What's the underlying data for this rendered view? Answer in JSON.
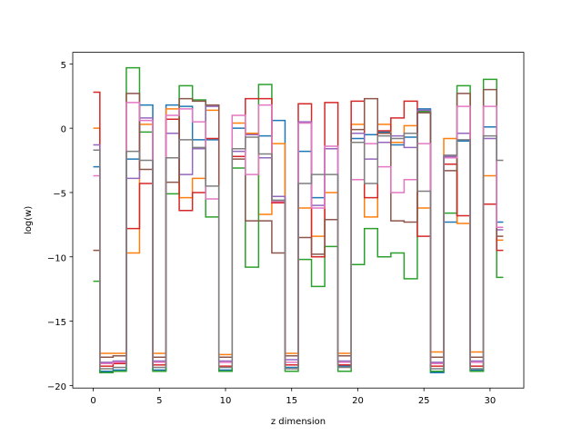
{
  "chart_data": {
    "type": "line",
    "drawstyle": "steps-mid",
    "xlabel": "z dimension",
    "ylabel": "log(w)",
    "xlim": [
      -1.55,
      32.55
    ],
    "ylim": [
      -20.2,
      5.9
    ],
    "xticks": [
      0,
      5,
      10,
      15,
      20,
      25,
      30
    ],
    "yticks": [
      -20,
      -15,
      -10,
      -5,
      0,
      5
    ],
    "grid": false,
    "legend": "none",
    "x": [
      0,
      1,
      2,
      3,
      4,
      5,
      6,
      7,
      8,
      9,
      10,
      11,
      12,
      13,
      14,
      15,
      16,
      17,
      18,
      19,
      20,
      21,
      22,
      23,
      24,
      25,
      26,
      27,
      28,
      29,
      30,
      31
    ],
    "series": [
      {
        "color": "#1f77b4",
        "values": [
          -3.0,
          -18.9,
          -18.8,
          -2.4,
          1.8,
          -18.8,
          1.8,
          1.7,
          -0.9,
          -0.9,
          -18.8,
          0.0,
          -0.5,
          -0.6,
          0.6,
          -18.6,
          -1.8,
          -5.4,
          -1.6,
          -18.5,
          -0.8,
          -0.5,
          -0.3,
          -1.3,
          -0.7,
          1.5,
          -19.0,
          -7.3,
          -1.0,
          -18.8,
          0.1,
          -7.3
        ]
      },
      {
        "color": "#ff7f0e",
        "values": [
          0.0,
          -17.5,
          -17.5,
          -9.7,
          0.3,
          -17.5,
          1.5,
          -5.4,
          -3.9,
          1.4,
          -17.6,
          0.4,
          -0.4,
          -6.7,
          -1.2,
          -17.5,
          -6.2,
          -8.4,
          -5.0,
          -17.5,
          0.3,
          -6.9,
          0.3,
          -1.1,
          0.2,
          -6.2,
          -17.4,
          -0.8,
          -7.4,
          -17.4,
          -3.7,
          -8.7
        ]
      },
      {
        "color": "#2ca02c",
        "values": [
          -11.9,
          -19.0,
          -18.9,
          4.7,
          -0.3,
          -18.9,
          -5.1,
          3.3,
          2.2,
          -6.9,
          -18.9,
          -3.1,
          -10.8,
          3.4,
          -5.6,
          -18.9,
          -10.2,
          -12.3,
          -9.2,
          -18.9,
          -10.6,
          -7.8,
          -10.0,
          -9.7,
          -11.7,
          1.3,
          -18.9,
          -6.6,
          3.3,
          -18.9,
          3.8,
          -11.6
        ]
      },
      {
        "color": "#d62728",
        "values": [
          2.8,
          -18.5,
          -18.3,
          -7.8,
          -4.3,
          -18.4,
          0.7,
          -6.4,
          -5.0,
          -0.8,
          -18.5,
          -2.2,
          2.3,
          2.3,
          -5.8,
          -18.4,
          1.9,
          -10.0,
          2.0,
          -18.4,
          2.1,
          -5.4,
          -0.2,
          0.8,
          2.1,
          -8.4,
          -18.5,
          -2.8,
          -6.8,
          -18.5,
          -5.9,
          -9.5
        ]
      },
      {
        "color": "#9467bd",
        "values": [
          -1.3,
          -18.2,
          -18.1,
          -3.9,
          0.8,
          -18.1,
          -0.4,
          -3.6,
          -1.6,
          1.7,
          -18.1,
          -1.8,
          -0.5,
          -2.3,
          -5.3,
          -18.0,
          0.5,
          -6.0,
          -1.6,
          -18.1,
          -0.4,
          -2.4,
          -1.1,
          -0.6,
          -1.5,
          1.4,
          -18.2,
          -2.2,
          -0.4,
          -18.1,
          -0.8,
          -7.9
        ]
      },
      {
        "color": "#8c564b",
        "values": [
          -9.5,
          -17.8,
          -17.7,
          2.7,
          -3.2,
          -17.8,
          -4.2,
          2.3,
          2.1,
          1.8,
          -17.8,
          -2.4,
          -7.2,
          -7.2,
          -9.7,
          -17.7,
          -8.5,
          -9.8,
          -7.1,
          -17.7,
          -0.1,
          2.3,
          -0.4,
          -7.2,
          -7.3,
          1.2,
          -17.8,
          -3.3,
          2.7,
          -17.8,
          3.0,
          -8.4
        ]
      },
      {
        "color": "#e377c2",
        "values": [
          -3.7,
          -18.3,
          -18.2,
          2.0,
          0.6,
          -18.2,
          1.0,
          1.5,
          0.5,
          -5.5,
          -18.2,
          1.0,
          -3.6,
          1.8,
          -5.7,
          -18.2,
          0.4,
          -6.2,
          -1.4,
          -18.2,
          -4.0,
          -1.2,
          -3.0,
          -5.0,
          -4.0,
          -1.2,
          -18.3,
          -2.3,
          1.7,
          -18.2,
          1.7,
          -7.7
        ]
      },
      {
        "color": "#7f7f7f",
        "values": [
          -1.7,
          -18.7,
          -18.6,
          -1.8,
          -2.5,
          -18.6,
          -2.3,
          -0.9,
          -1.5,
          -4.5,
          -18.6,
          -1.6,
          -0.7,
          -2.0,
          -5.6,
          -18.7,
          -4.3,
          -3.6,
          -3.6,
          -18.6,
          -1.1,
          -4.3,
          -0.6,
          -0.8,
          -0.4,
          -4.9,
          -18.7,
          -2.1,
          -0.9,
          -18.7,
          -0.6,
          -2.5
        ]
      }
    ]
  }
}
